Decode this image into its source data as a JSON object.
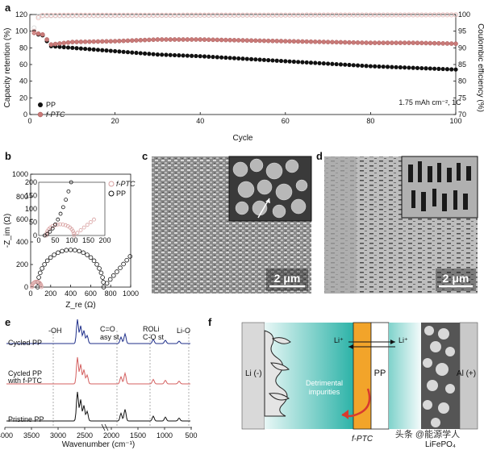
{
  "panel_labels": {
    "a": "a",
    "b": "b",
    "c": "c",
    "d": "d",
    "e": "e",
    "f": "f"
  },
  "colors": {
    "pp": "#111111",
    "fptc": "#c97a78",
    "ce_pp": "#d8d8d8",
    "ce_fptc": "#e9b8b6",
    "blue": "#1f2f8a",
    "red": "#d46060",
    "black": "#111111",
    "orange": "#f2a42a",
    "teal": "#3cb8b0"
  },
  "chart_data": [
    {
      "type": "scatter",
      "panel": "a",
      "xlabel": "Cycle",
      "ylabel": "Capacity retention (%)",
      "y2label": "Coulombic efficiency (%)",
      "xlim": [
        0,
        100
      ],
      "ylim": [
        0,
        120
      ],
      "y2lim": [
        70,
        100
      ],
      "xticks": [
        "0",
        "20",
        "40",
        "60",
        "80",
        "100"
      ],
      "yticks": [
        "0",
        "20",
        "40",
        "60",
        "80",
        "100",
        "120"
      ],
      "y2ticks": [
        "70",
        "75",
        "80",
        "85",
        "90",
        "95",
        "100"
      ],
      "annotation": "1.75 mAh cm⁻², 1C",
      "legend_position": "bottom-left",
      "series": [
        {
          "name": "PP",
          "color": "#111111",
          "axis": "left",
          "points": [
            [
              1,
              100
            ],
            [
              2,
              96
            ],
            [
              3,
              95
            ],
            [
              4,
              88
            ],
            [
              5,
              82
            ],
            [
              10,
              80
            ],
            [
              20,
              76
            ],
            [
              30,
              72
            ],
            [
              40,
              70
            ],
            [
              50,
              67
            ],
            [
              60,
              64
            ],
            [
              70,
              61
            ],
            [
              80,
              58
            ],
            [
              90,
              56
            ],
            [
              100,
              54
            ]
          ]
        },
        {
          "name": "f-PTC",
          "color": "#c97a78",
          "axis": "left",
          "points": [
            [
              1,
              98
            ],
            [
              2,
              97
            ],
            [
              3,
              96
            ],
            [
              4,
              90
            ],
            [
              5,
              84
            ],
            [
              10,
              87
            ],
            [
              20,
              88
            ],
            [
              30,
              90
            ],
            [
              40,
              90
            ],
            [
              50,
              89
            ],
            [
              60,
              88
            ],
            [
              70,
              87
            ],
            [
              80,
              86
            ],
            [
              90,
              86
            ],
            [
              100,
              85
            ]
          ]
        },
        {
          "name": "",
          "color": "#d8d8d8",
          "axis": "right",
          "hollow": true,
          "points": [
            [
              1,
              96
            ],
            [
              2,
              99.5
            ],
            [
              3,
              99.6
            ],
            [
              100,
              99.9
            ]
          ]
        },
        {
          "name": "",
          "color": "#e9b8b6",
          "axis": "right",
          "hollow": true,
          "points": [
            [
              1,
              95
            ],
            [
              2,
              99
            ],
            [
              3,
              99.8
            ],
            [
              100,
              99.9
            ]
          ]
        }
      ]
    },
    {
      "type": "scatter",
      "panel": "b",
      "xlabel": "Z_re (Ω)",
      "ylabel": "-Z_im (Ω)",
      "xlim": [
        0,
        1000
      ],
      "ylim": [
        0,
        1000
      ],
      "xticks": [
        "0",
        "200",
        "400",
        "600",
        "800",
        "1000"
      ],
      "yticks": [
        "0",
        "200",
        "400",
        "600",
        "800",
        "1000"
      ],
      "legend_position": "top-right",
      "series": [
        {
          "name": "f-PTC",
          "color": "#d8a0a0"
        },
        {
          "name": "PP",
          "color": "#111111"
        }
      ],
      "inset": {
        "xlim": [
          0,
          200
        ],
        "ylim": [
          0,
          200
        ],
        "xticks": [
          "0",
          "50",
          "100",
          "150",
          "200"
        ],
        "yticks": [
          "0",
          "50",
          "100",
          "150",
          "200"
        ]
      }
    },
    {
      "type": "line",
      "panel": "e",
      "xlabel": "Wavenumber (cm⁻¹)",
      "xticks": [
        "4000",
        "3500",
        "3000",
        "2500",
        "2000",
        "1500",
        "1000",
        "500"
      ],
      "series": [
        {
          "name": "Cycled PP",
          "color": "#1f2f8a"
        },
        {
          "name": "Cycled PP with f-PTC",
          "color": "#d46060"
        },
        {
          "name": "Pristine PP",
          "color": "#111111"
        }
      ],
      "annotations": [
        "-OH",
        "C=O",
        "asy st",
        "ROLi",
        "C-O st",
        "Li-O"
      ]
    }
  ],
  "panel_c": {
    "scalebar": "2 μm"
  },
  "panel_d": {
    "scalebar": "2 μm"
  },
  "panel_e": {
    "labels": {
      "cycled_pp": "Cycled PP",
      "cycled_fptc_1": "Cycled PP",
      "cycled_fptc_2": "with f-PTC",
      "pristine": "Pristine PP"
    }
  },
  "panel_f": {
    "li_minus": "Li (-)",
    "li_ion_1": "Li⁺",
    "li_ion_2": "Li⁺",
    "pp": "PP",
    "impurities_1": "Detrimental",
    "impurities_2": "impurities",
    "al_plus": "Al (+)",
    "fptc": "f-PTC",
    "lifepo4": "LiFePO₄"
  },
  "watermark": "头条 @能源学人"
}
